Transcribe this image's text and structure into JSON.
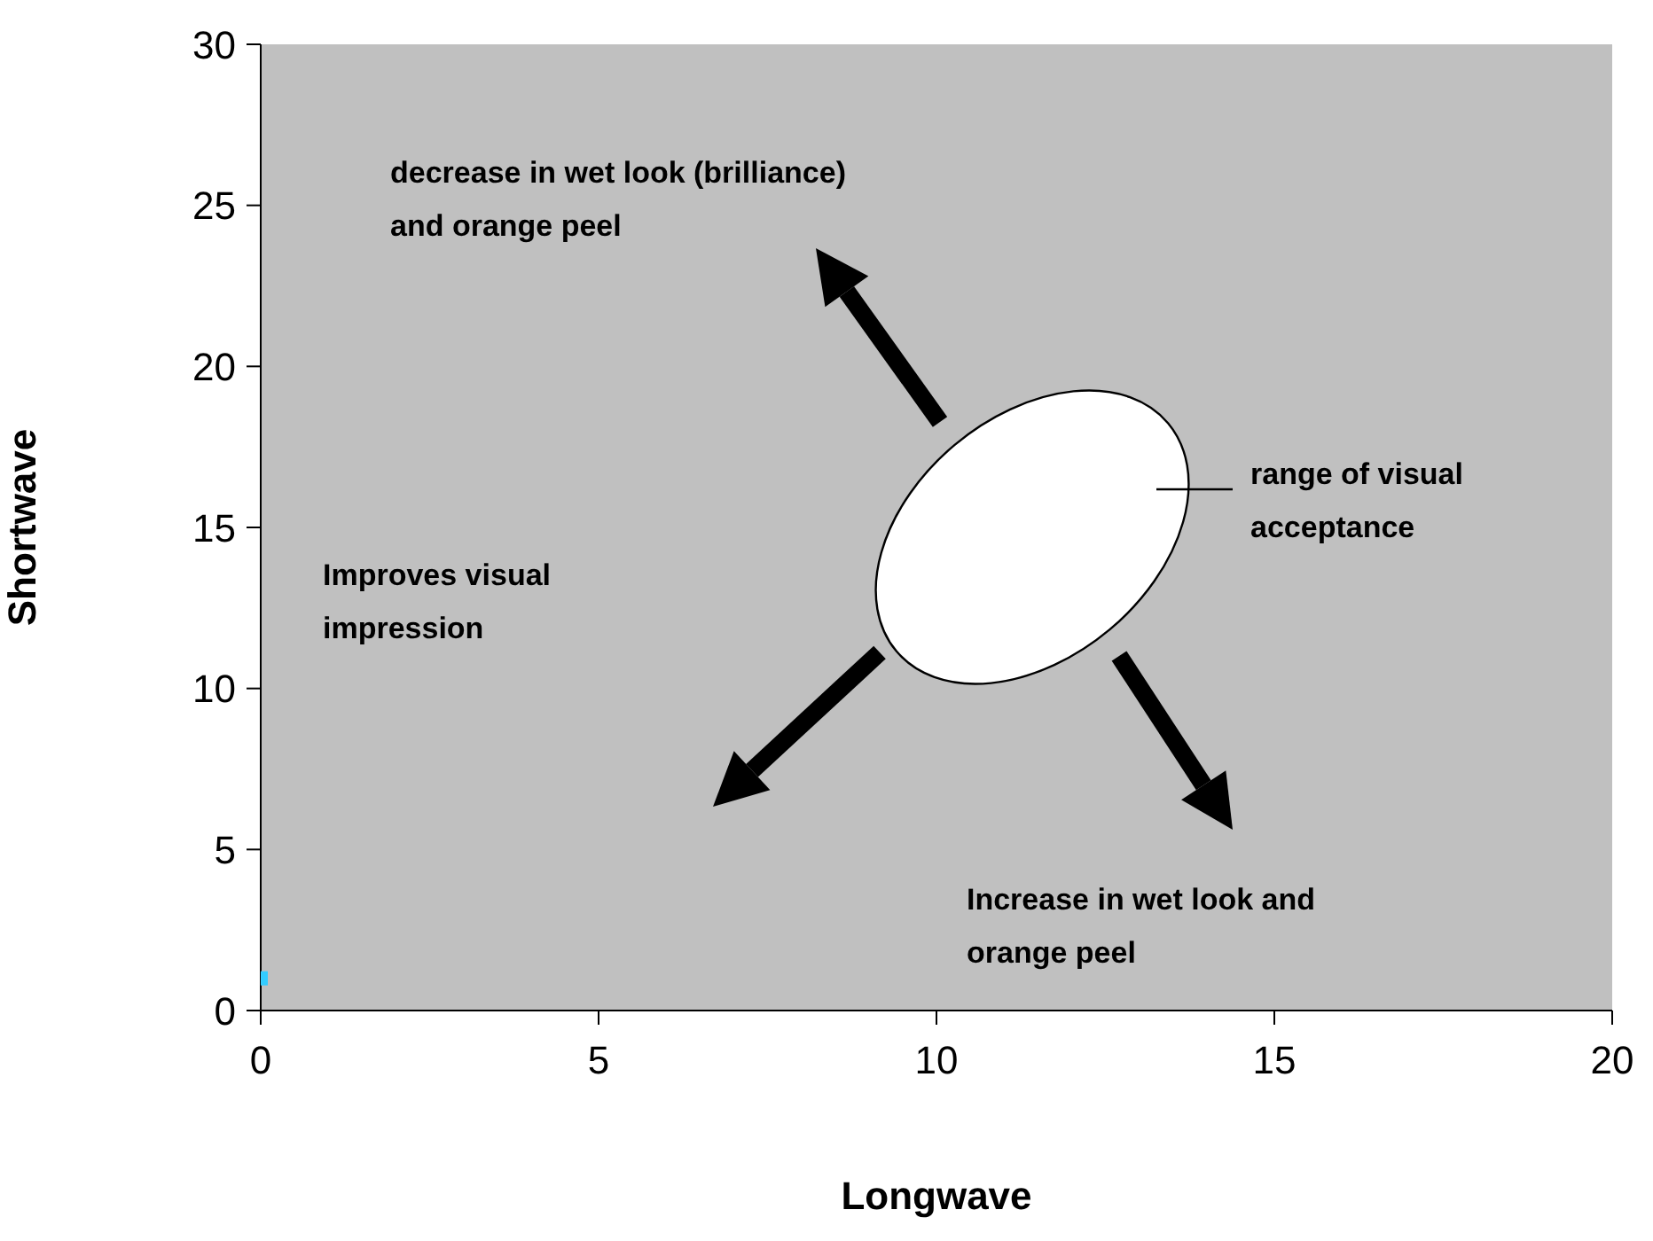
{
  "chart_data": {
    "type": "scatter",
    "xlabel": "Longwave",
    "ylabel": "Shortwave",
    "xlim": [
      0,
      20
    ],
    "ylim": [
      0,
      30
    ],
    "xticks": [
      0,
      5,
      10,
      15,
      20
    ],
    "yticks": [
      0,
      5,
      10,
      15,
      20,
      25,
      30
    ],
    "marker": "square",
    "series": [
      {
        "color": "#33ccff",
        "x": [
          0
        ],
        "values": [
          1
        ]
      }
    ],
    "annotations": [
      "decrease in wet look (brilliance) and orange peel",
      "Improves visual impression",
      "range of visual acceptance",
      "Increase in wet look and orange peel"
    ]
  }
}
